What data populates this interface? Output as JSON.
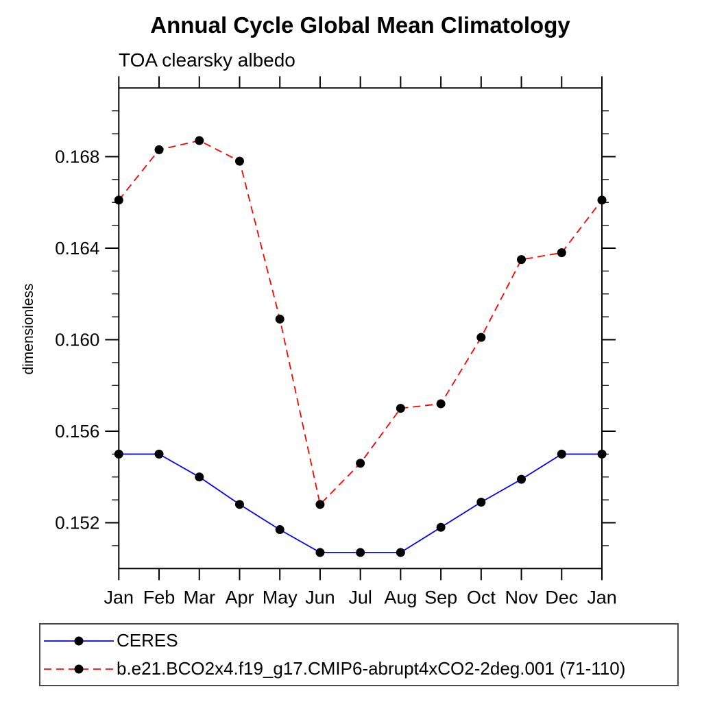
{
  "title": "Annual Cycle Global Mean Climatology",
  "subtitle": "TOA clearsky albedo",
  "chart_data": {
    "type": "line",
    "categories": [
      "Jan",
      "Feb",
      "Mar",
      "Apr",
      "May",
      "Jun",
      "Jul",
      "Aug",
      "Sep",
      "Oct",
      "Nov",
      "Dec",
      "Jan"
    ],
    "xlabel": "",
    "ylabel": "dimensionless",
    "ylim": [
      0.15,
      0.171
    ],
    "y_major_ticks": [
      0.152,
      0.156,
      0.16,
      0.164,
      0.168
    ],
    "y_minor_step": 0.001,
    "y_tick_decimals": 3,
    "grid": false,
    "legend_position": "bottom-left-box",
    "series": [
      {
        "name": "CERES",
        "color": "#0000ff",
        "line_style": "solid",
        "marker": "filled-circle",
        "marker_color": "#000000",
        "values": [
          0.155,
          0.155,
          0.154,
          0.1528,
          0.1517,
          0.1507,
          0.1507,
          0.1507,
          0.1518,
          0.1529,
          0.1539,
          0.155,
          0.155
        ]
      },
      {
        "name": "b.e21.BCO2x4.f19_g17.CMIP6-abrupt4xCO2-2deg.001 (71-110)",
        "color": "#ff0000",
        "line_style": "dashed",
        "marker": "filled-circle",
        "marker_color": "#000000",
        "values": [
          0.1661,
          0.1683,
          0.1687,
          0.1678,
          0.1609,
          0.1528,
          0.1546,
          0.157,
          0.1572,
          0.1601,
          0.1635,
          0.1638,
          0.1661
        ]
      }
    ]
  },
  "colors": {
    "background": "#ffffff",
    "axis": "#000000",
    "text": "#000000",
    "legend_border": "#4a4a4a"
  }
}
